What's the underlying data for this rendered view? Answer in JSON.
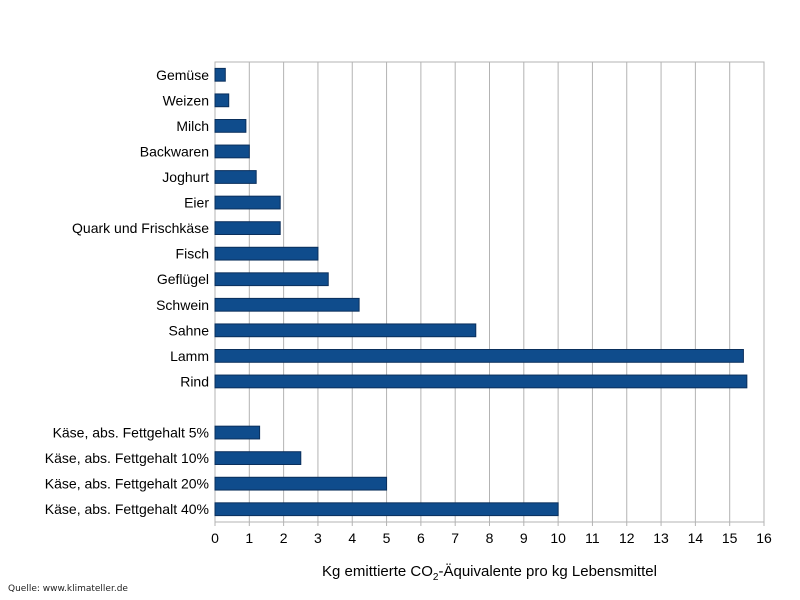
{
  "chart_data": {
    "type": "bar",
    "orientation": "horizontal",
    "title": "",
    "xlabel": {
      "prefix": "Kg emittierte CO",
      "subscript": "2",
      "suffix": "-Äquivalente pro kg Lebensmittel"
    },
    "ylabel": "",
    "xlim": [
      0,
      16
    ],
    "xticks": [
      0,
      1,
      2,
      3,
      4,
      5,
      6,
      7,
      8,
      9,
      10,
      11,
      12,
      13,
      14,
      15,
      16
    ],
    "grid": "vertical",
    "legend": "none",
    "bar_color": "#0f4c8c",
    "bar_edge_color": "#0a2f5c",
    "categories": [
      "Gemüse",
      "Weizen",
      "Milch",
      "Backwaren",
      "Joghurt",
      "Eier",
      "Quark und Frischkäse",
      "Fisch",
      "Geflügel",
      "Schwein",
      "Sahne",
      "Lamm",
      "Rind",
      "",
      "Käse, abs. Fettgehalt 5%",
      "Käse, abs. Fettgehalt 10%",
      "Käse, abs. Fettgehalt 20%",
      "Käse, abs. Fettgehalt 40%"
    ],
    "values": [
      0.3,
      0.4,
      0.9,
      1.0,
      1.2,
      1.9,
      1.9,
      3.0,
      3.3,
      4.2,
      7.6,
      15.4,
      15.5,
      null,
      1.3,
      2.5,
      5.0,
      10.0
    ]
  },
  "source": "Quelle: www.klimateller.de"
}
